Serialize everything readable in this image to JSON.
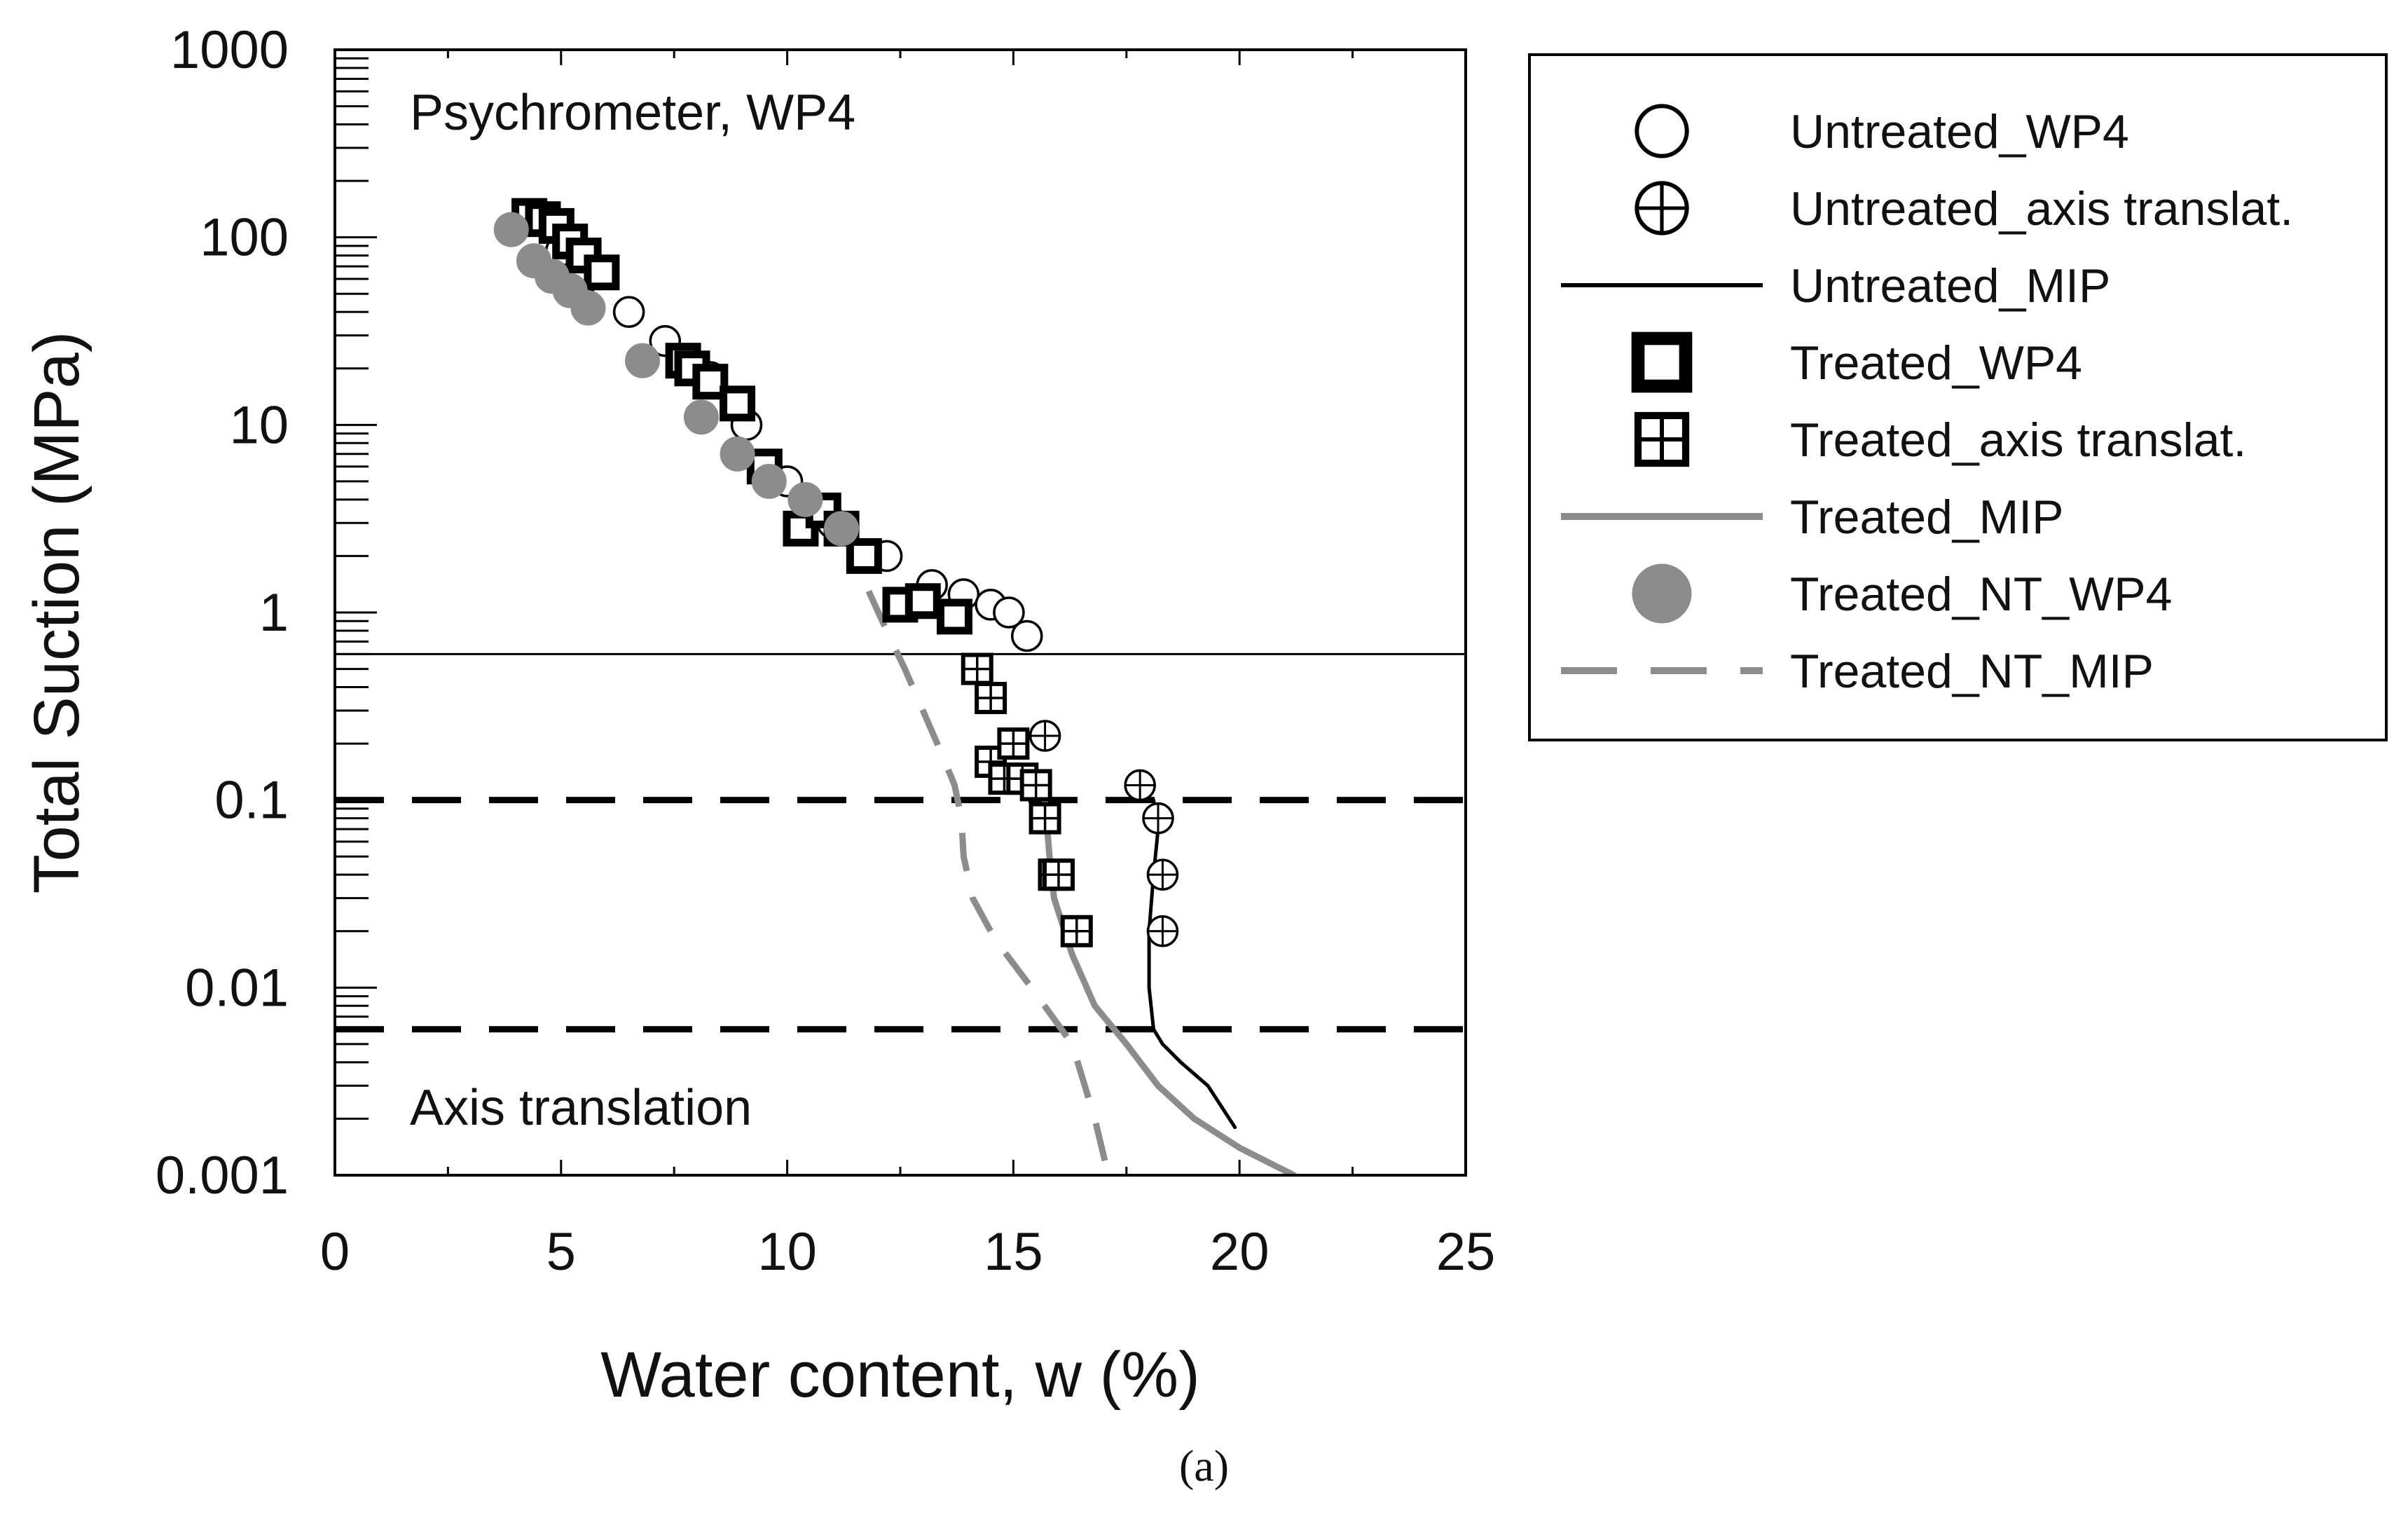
{
  "chart_data": {
    "type": "scatter",
    "xlabel": "Water content, w (%)",
    "ylabel": "Total Suction (MPa)",
    "xlim": [
      0,
      25
    ],
    "ylim": [
      0.001,
      1000
    ],
    "yscale": "log",
    "x_ticks": [
      0,
      5,
      10,
      15,
      20,
      25
    ],
    "x_tick_labels": [
      "0",
      "5",
      "10",
      "15",
      "20",
      "25"
    ],
    "y_ticks": [
      0.001,
      0.01,
      0.1,
      1,
      10,
      100,
      1000
    ],
    "y_tick_labels": [
      "0.001",
      "0.01",
      "0.1",
      "1",
      "10",
      "100",
      "1000"
    ],
    "annotations": [
      {
        "text": "Psychrometer, WP4"
      },
      {
        "text": "Axis translation"
      }
    ],
    "reference_lines": [
      {
        "orientation": "horizontal",
        "y": 0.6,
        "style": "solid",
        "color": "#000000"
      },
      {
        "orientation": "horizontal",
        "y": 0.1,
        "style": "dashed",
        "color": "#000000"
      },
      {
        "orientation": "horizontal",
        "y": 0.006,
        "style": "dashed",
        "color": "#000000"
      }
    ],
    "legend_position": "outside-right",
    "series": [
      {
        "name": "Untreated_WP4",
        "kind": "marker",
        "marker": "circle-open",
        "color": "#000000",
        "x": [
          5.0,
          5.5,
          6.5,
          7.3,
          8.3,
          9.1,
          10.0,
          11.0,
          12.2,
          13.2,
          13.9,
          14.5,
          14.9,
          15.3
        ],
        "y": [
          85,
          60,
          40,
          28,
          18,
          10,
          5,
          3,
          2,
          1.4,
          1.25,
          1.1,
          1.0,
          0.75
        ]
      },
      {
        "name": "Untreated_axis translat.",
        "kind": "marker",
        "marker": "circle-plus",
        "color": "#000000",
        "x": [
          15.7,
          17.8,
          18.2,
          18.3,
          18.3
        ],
        "y": [
          0.22,
          0.12,
          0.08,
          0.04,
          0.02
        ]
      },
      {
        "name": "Untreated_MIP",
        "kind": "line",
        "style": "solid",
        "color": "#000000",
        "x": [
          18.1,
          18.2,
          18.1,
          18.0,
          18.0,
          18.1,
          18.3,
          18.7,
          19.3,
          19.9
        ],
        "y": [
          0.1,
          0.07,
          0.04,
          0.02,
          0.01,
          0.006,
          0.005,
          0.004,
          0.003,
          0.0018
        ]
      },
      {
        "name": "Treated_WP4",
        "kind": "marker",
        "marker": "square-bold",
        "color": "#000000",
        "x": [
          4.3,
          4.6,
          4.9,
          5.2,
          5.5,
          5.9,
          7.7,
          7.9,
          8.3,
          8.9,
          9.5,
          10.3,
          10.8,
          11.2,
          11.7,
          12.5,
          13.0,
          13.7
        ],
        "y": [
          130,
          125,
          115,
          95,
          80,
          65,
          22,
          20,
          17,
          13,
          6,
          2.8,
          3.5,
          2.8,
          2.0,
          1.1,
          1.15,
          0.95
        ]
      },
      {
        "name": "Treated_axis translat.",
        "kind": "marker",
        "marker": "square-plus",
        "color": "#000000",
        "x": [
          14.2,
          14.5,
          14.5,
          14.8,
          15.0,
          15.2,
          15.5,
          15.7,
          15.9,
          16.0,
          16.4
        ],
        "y": [
          0.5,
          0.35,
          0.16,
          0.13,
          0.2,
          0.13,
          0.12,
          0.08,
          0.04,
          0.04,
          0.02
        ]
      },
      {
        "name": "Treated_MIP",
        "kind": "line",
        "style": "solid",
        "color": "#8c8c8c",
        "x": [
          15.7,
          15.75,
          15.8,
          15.9,
          16.3,
          16.8,
          17.5,
          18.2,
          19.0,
          20.0,
          21.2
        ],
        "y": [
          0.1,
          0.07,
          0.05,
          0.03,
          0.015,
          0.008,
          0.005,
          0.003,
          0.002,
          0.0014,
          0.001
        ]
      },
      {
        "name": "Treated_NT_WP4",
        "kind": "marker",
        "marker": "circle-filled",
        "color": "#8c8c8c",
        "x": [
          3.9,
          4.4,
          4.8,
          5.2,
          5.6,
          6.8,
          8.1,
          8.9,
          9.6,
          10.4,
          11.2
        ],
        "y": [
          110,
          75,
          62,
          52,
          42,
          22,
          11,
          7,
          5,
          4,
          2.8
        ]
      },
      {
        "name": "Treated_NT_MIP",
        "kind": "line",
        "style": "dashed",
        "color": "#8c8c8c",
        "x": [
          11.8,
          12.2,
          12.6,
          13.0,
          13.4,
          13.7,
          13.85,
          13.9,
          14.1,
          14.6,
          15.4,
          16.3,
          16.8,
          17.1
        ],
        "y": [
          1.3,
          0.8,
          0.5,
          0.3,
          0.18,
          0.12,
          0.08,
          0.05,
          0.03,
          0.018,
          0.01,
          0.005,
          0.002,
          0.001
        ]
      }
    ],
    "caption": "(a)"
  }
}
